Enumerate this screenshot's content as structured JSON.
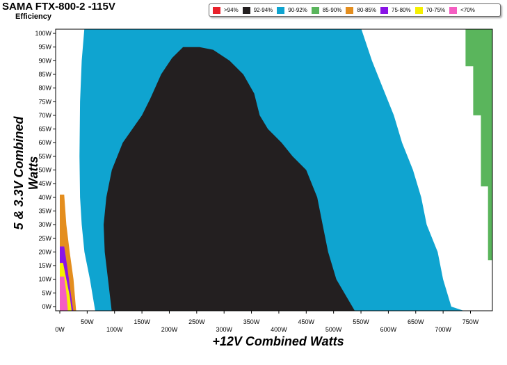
{
  "header": {
    "title": "SAMA FTX-800-2 -115V",
    "subtitle": "Efficiency"
  },
  "legend": [
    {
      "label": ">94%",
      "color": "#e8212b"
    },
    {
      "label": "92-94%",
      "color": "#231f20"
    },
    {
      "label": "90-92%",
      "color": "#0fa4d0"
    },
    {
      "label": "85-90%",
      "color": "#5ab55c"
    },
    {
      "label": "80-85%",
      "color": "#e48e1e"
    },
    {
      "label": "75-80%",
      "color": "#8a14e6"
    },
    {
      "label": "70-75%",
      "color": "#f5f000"
    },
    {
      "label": "<70%",
      "color": "#f55ec2"
    }
  ],
  "chart_data": {
    "type": "heatmap",
    "title": "SAMA FTX-800-2 -115V",
    "subtitle": "Efficiency",
    "xlabel": "+12V Combined Watts",
    "ylabel": "5 & 3.3V Combined Watts",
    "xlim": [
      0,
      790
    ],
    "ylim": [
      0,
      100
    ],
    "x_ticks": [
      "0W",
      "50W",
      "100W",
      "150W",
      "200W",
      "250W",
      "300W",
      "350W",
      "400W",
      "450W",
      "500W",
      "550W",
      "600W",
      "650W",
      "700W",
      "750W"
    ],
    "x_tick_values": [
      0,
      50,
      100,
      150,
      200,
      250,
      300,
      350,
      400,
      450,
      500,
      550,
      600,
      650,
      700,
      750
    ],
    "y_ticks": [
      "0W",
      "5W",
      "10W",
      "15W",
      "20W",
      "25W",
      "30W",
      "35W",
      "40W",
      "45W",
      "50W",
      "55W",
      "60W",
      "65W",
      "70W",
      "75W",
      "80W",
      "85W",
      "90W",
      "95W",
      "100W"
    ],
    "y_tick_values": [
      0,
      5,
      10,
      15,
      20,
      25,
      30,
      35,
      40,
      45,
      50,
      55,
      60,
      65,
      70,
      75,
      80,
      85,
      90,
      95,
      100
    ],
    "regions": [
      {
        "band": "85-90%",
        "color": "#5ab55c",
        "boundary": [
          [
            0,
            102
          ],
          [
            795,
            102
          ],
          [
            795,
            17
          ],
          [
            782,
            17
          ],
          [
            782,
            44
          ],
          [
            769,
            44
          ],
          [
            769,
            70
          ],
          [
            755,
            70
          ],
          [
            755,
            88
          ],
          [
            741,
            88
          ],
          [
            741,
            102
          ]
        ]
      },
      {
        "band": "90-92%",
        "color": "#0fa4d0",
        "boundary": [
          [
            45,
            102
          ],
          [
            550,
            102
          ],
          [
            570,
            90
          ],
          [
            590,
            80
          ],
          [
            610,
            70
          ],
          [
            625,
            60
          ],
          [
            645,
            50
          ],
          [
            660,
            40
          ],
          [
            670,
            30
          ],
          [
            690,
            20
          ],
          [
            700,
            10
          ],
          [
            715,
            0
          ],
          [
            745,
            -2
          ],
          [
            65,
            -2
          ],
          [
            55,
            10
          ],
          [
            45,
            20
          ],
          [
            40,
            30
          ],
          [
            37,
            40
          ],
          [
            36,
            55
          ],
          [
            37,
            75
          ],
          [
            40,
            90
          ],
          [
            45,
            102
          ]
        ]
      },
      {
        "band": "92-94%",
        "color": "#231f20",
        "boundary": [
          [
            235,
            95
          ],
          [
            225,
            95
          ],
          [
            205,
            91
          ],
          [
            185,
            85
          ],
          [
            165,
            76
          ],
          [
            150,
            70
          ],
          [
            115,
            60
          ],
          [
            95,
            50
          ],
          [
            85,
            40
          ],
          [
            80,
            30
          ],
          [
            82,
            20
          ],
          [
            88,
            10
          ],
          [
            95,
            -2
          ],
          [
            540,
            -2
          ],
          [
            505,
            10
          ],
          [
            490,
            20
          ],
          [
            480,
            30
          ],
          [
            470,
            40
          ],
          [
            450,
            50
          ],
          [
            425,
            55
          ],
          [
            405,
            60
          ],
          [
            380,
            65
          ],
          [
            365,
            70
          ],
          [
            355,
            78
          ],
          [
            335,
            85
          ],
          [
            310,
            90
          ],
          [
            280,
            94
          ],
          [
            255,
            95
          ]
        ]
      },
      {
        "band": "80-85%",
        "color": "#e48e1e",
        "boundary": [
          [
            0,
            41
          ],
          [
            8,
            41
          ],
          [
            12,
            30
          ],
          [
            18,
            20
          ],
          [
            25,
            10
          ],
          [
            30,
            -2
          ],
          [
            0,
            -2
          ]
        ]
      },
      {
        "band": "75-80%",
        "color": "#8a14e6",
        "boundary": [
          [
            0,
            22
          ],
          [
            8,
            22
          ],
          [
            14,
            14
          ],
          [
            20,
            5
          ],
          [
            25,
            -2
          ],
          [
            0,
            -2
          ]
        ]
      },
      {
        "band": "70-75%",
        "color": "#f5f000",
        "boundary": [
          [
            0,
            16
          ],
          [
            6,
            16
          ],
          [
            12,
            10
          ],
          [
            18,
            4
          ],
          [
            22,
            -2
          ],
          [
            0,
            -2
          ]
        ]
      },
      {
        "band": "<70%",
        "color": "#f55ec2",
        "boundary": [
          [
            0,
            11
          ],
          [
            8,
            11
          ],
          [
            12,
            5
          ],
          [
            15,
            -2
          ],
          [
            0,
            -2
          ]
        ]
      }
    ]
  }
}
